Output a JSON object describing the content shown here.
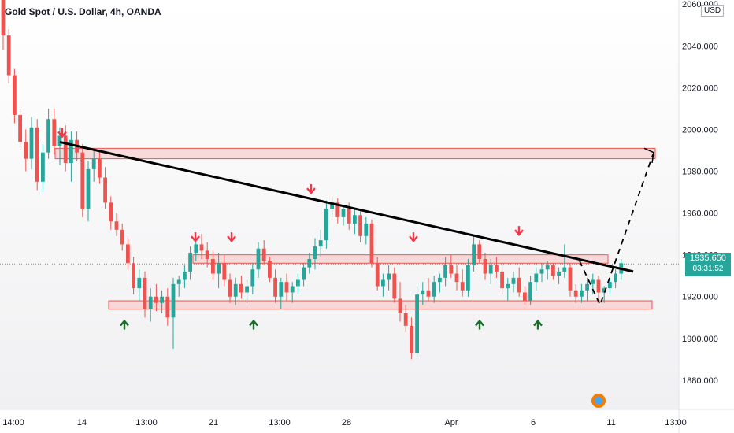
{
  "chart_data": {
    "type": "candlestick",
    "title": "Gold Spot / U.S. Dollar, 4h, OANDA",
    "currency": "USD",
    "ylim": [
      1866,
      2062
    ],
    "y_ticks": [
      2040,
      2020,
      2000,
      1980,
      1960,
      1940,
      1920,
      1900,
      1880
    ],
    "y_tick_labels": [
      "2040.000",
      "2020.000",
      "2000.000",
      "1980.000",
      "1960.000",
      "1940.000",
      "1920.000",
      "1900.000",
      "1880.000"
    ],
    "top_tick_label": "2060.000",
    "x_tick_labels": [
      "14:00",
      "14",
      "13:00",
      "21",
      "13:00",
      "28",
      "Apr",
      "6",
      "11",
      "13:00"
    ],
    "last_price": "1935.650",
    "countdown": "03:31:52",
    "colors": {
      "up": "#26a69a",
      "down": "#ef5350",
      "zone_fill": "#f8c4c4",
      "zone_stroke": "#ef5350",
      "badge": "#26a69a"
    },
    "zones": [
      {
        "from": 1986,
        "to": 1991
      },
      {
        "from": 1936,
        "to": 1940
      },
      {
        "from": 1914,
        "to": 1918
      }
    ],
    "trendline": {
      "from": {
        "x_index": 2,
        "y": 1994
      },
      "to": {
        "x_index": 32,
        "y": 1932
      }
    },
    "projection": [
      {
        "x_index": 29.6,
        "y": 1937
      },
      {
        "x_index": 30.6,
        "y": 1916
      },
      {
        "x_index": 32.8,
        "y": 1988
      }
    ],
    "candles": [
      [
        2062,
        2065,
        2038,
        2045
      ],
      [
        2045,
        2048,
        2022,
        2026
      ],
      [
        2026,
        2029,
        2003,
        2007
      ],
      [
        2007,
        2010,
        1990,
        1994
      ],
      [
        1994,
        2000,
        1980,
        1986
      ],
      [
        1986,
        2006,
        1981,
        2001
      ],
      [
        2001,
        2005,
        1971,
        1975
      ],
      [
        1975,
        1993,
        1970,
        1989
      ],
      [
        1989,
        2010,
        1986,
        2005
      ],
      [
        2005,
        2010,
        1988,
        1992
      ],
      [
        1992,
        2001,
        1983,
        1997
      ],
      [
        1997,
        2002,
        1980,
        1984
      ],
      [
        1984,
        1999,
        1975,
        1995
      ],
      [
        1995,
        1999,
        1985,
        1989
      ],
      [
        1989,
        1993,
        1958,
        1962
      ],
      [
        1962,
        1985,
        1956,
        1981
      ],
      [
        1981,
        1990,
        1975,
        1986
      ],
      [
        1986,
        1990,
        1974,
        1977
      ],
      [
        1977,
        1982,
        1962,
        1965
      ],
      [
        1965,
        1968,
        1952,
        1956
      ],
      [
        1956,
        1960,
        1949,
        1952
      ],
      [
        1952,
        1955,
        1942,
        1945
      ],
      [
        1945,
        1948,
        1933,
        1936
      ],
      [
        1936,
        1939,
        1921,
        1924
      ],
      [
        1924,
        1933,
        1918,
        1929
      ],
      [
        1929,
        1932,
        1910,
        1914
      ],
      [
        1914,
        1924,
        1908,
        1920
      ],
      [
        1920,
        1926,
        1913,
        1917
      ],
      [
        1917,
        1923,
        1912,
        1920
      ],
      [
        1920,
        1924,
        1906,
        1910
      ],
      [
        1910,
        1929,
        1895,
        1926
      ],
      [
        1926,
        1930,
        1920,
        1928
      ],
      [
        1928,
        1935,
        1924,
        1932
      ],
      [
        1932,
        1944,
        1928,
        1941
      ],
      [
        1941,
        1948,
        1937,
        1945
      ],
      [
        1945,
        1950,
        1938,
        1942
      ],
      [
        1942,
        1946,
        1934,
        1938
      ],
      [
        1938,
        1942,
        1928,
        1931
      ],
      [
        1931,
        1941,
        1924,
        1936
      ],
      [
        1936,
        1940,
        1925,
        1928
      ],
      [
        1928,
        1931,
        1917,
        1920
      ],
      [
        1920,
        1929,
        1916,
        1926
      ],
      [
        1926,
        1930,
        1919,
        1922
      ],
      [
        1922,
        1928,
        1917,
        1925
      ],
      [
        1925,
        1936,
        1921,
        1933
      ],
      [
        1933,
        1946,
        1929,
        1943
      ],
      [
        1943,
        1947,
        1935,
        1937
      ],
      [
        1937,
        1939,
        1927,
        1929
      ],
      [
        1929,
        1933,
        1917,
        1920
      ],
      [
        1920,
        1929,
        1914,
        1927
      ],
      [
        1927,
        1931,
        1918,
        1922
      ],
      [
        1922,
        1927,
        1917,
        1925
      ],
      [
        1925,
        1931,
        1921,
        1928
      ],
      [
        1928,
        1936,
        1925,
        1934
      ],
      [
        1934,
        1941,
        1931,
        1938
      ],
      [
        1938,
        1948,
        1933,
        1944
      ],
      [
        1944,
        1952,
        1939,
        1947
      ],
      [
        1947,
        1966,
        1943,
        1962
      ],
      [
        1962,
        1968,
        1958,
        1965
      ],
      [
        1965,
        1967,
        1955,
        1958
      ],
      [
        1958,
        1964,
        1954,
        1962
      ],
      [
        1962,
        1965,
        1952,
        1955
      ],
      [
        1955,
        1962,
        1950,
        1959
      ],
      [
        1959,
        1962,
        1946,
        1949
      ],
      [
        1949,
        1958,
        1945,
        1955
      ],
      [
        1955,
        1957,
        1934,
        1936
      ],
      [
        1936,
        1939,
        1923,
        1925
      ],
      [
        1925,
        1931,
        1920,
        1928
      ],
      [
        1928,
        1935,
        1923,
        1931
      ],
      [
        1931,
        1934,
        1917,
        1919
      ],
      [
        1919,
        1927,
        1908,
        1912
      ],
      [
        1912,
        1916,
        1903,
        1906
      ],
      [
        1906,
        1910,
        1890,
        1893
      ],
      [
        1893,
        1925,
        1891,
        1921
      ],
      [
        1921,
        1927,
        1916,
        1923
      ],
      [
        1923,
        1929,
        1918,
        1920
      ],
      [
        1920,
        1930,
        1917,
        1927
      ],
      [
        1927,
        1931,
        1922,
        1929
      ],
      [
        1929,
        1939,
        1925,
        1935
      ],
      [
        1935,
        1940,
        1929,
        1931
      ],
      [
        1931,
        1935,
        1923,
        1927
      ],
      [
        1927,
        1933,
        1920,
        1923
      ],
      [
        1923,
        1938,
        1920,
        1935
      ],
      [
        1935,
        1949,
        1932,
        1945
      ],
      [
        1945,
        1947,
        1936,
        1938
      ],
      [
        1938,
        1941,
        1928,
        1931
      ],
      [
        1931,
        1938,
        1926,
        1935
      ],
      [
        1935,
        1939,
        1929,
        1932
      ],
      [
        1932,
        1935,
        1921,
        1924
      ],
      [
        1924,
        1929,
        1918,
        1926
      ],
      [
        1926,
        1932,
        1922,
        1929
      ],
      [
        1929,
        1934,
        1920,
        1922
      ],
      [
        1922,
        1925,
        1916,
        1918
      ],
      [
        1918,
        1930,
        1916,
        1927
      ],
      [
        1927,
        1934,
        1923,
        1931
      ],
      [
        1931,
        1936,
        1927,
        1933
      ],
      [
        1933,
        1937,
        1928,
        1935
      ],
      [
        1935,
        1936,
        1928,
        1930
      ],
      [
        1930,
        1934,
        1926,
        1932
      ],
      [
        1932,
        1945,
        1929,
        1934
      ],
      [
        1934,
        1936,
        1920,
        1923
      ],
      [
        1923,
        1926,
        1917,
        1920
      ],
      [
        1920,
        1926,
        1917,
        1923
      ],
      [
        1923,
        1929,
        1918,
        1926
      ],
      [
        1926,
        1931,
        1921,
        1928
      ],
      [
        1928,
        1930,
        1919,
        1922
      ],
      [
        1922,
        1925,
        1917,
        1924
      ],
      [
        1924,
        1929,
        1921,
        1927
      ],
      [
        1927,
        1933,
        1924,
        1931
      ],
      [
        1931,
        1938,
        1928,
        1936
      ]
    ],
    "down_arrows": [
      {
        "x": 79,
        "y": 1997
      },
      {
        "x": 248,
        "y": 1947
      },
      {
        "x": 294,
        "y": 1947
      },
      {
        "x": 395,
        "y": 1970
      },
      {
        "x": 525,
        "y": 1947
      },
      {
        "x": 659,
        "y": 1950
      }
    ],
    "up_arrows": [
      {
        "x": 158,
        "y": 1908
      },
      {
        "x": 322,
        "y": 1908
      },
      {
        "x": 609,
        "y": 1908
      },
      {
        "x": 683,
        "y": 1908
      }
    ]
  }
}
